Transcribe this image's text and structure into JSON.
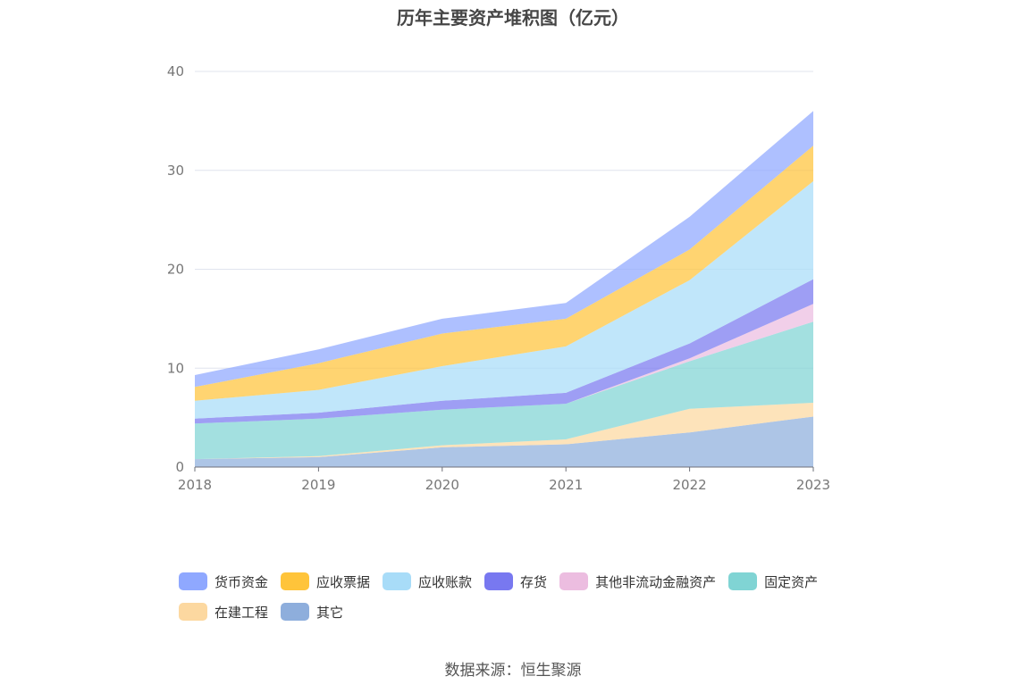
{
  "source": "数据来源：恒生聚源",
  "colors": {
    "货币资金": "#8fa8ff",
    "应收票据": "#ffc43a",
    "应收账款": "#a8dcf8",
    "存货": "#7878f0",
    "其他非流动金融资产": "#ecbde0",
    "固定资产": "#80d4d4",
    "在建工程": "#fcd8a0",
    "其它": "#8eaedc"
  },
  "chart_data": {
    "type": "area",
    "stacked": true,
    "title": "历年主要资产堆积图（亿元）",
    "xlabel": "",
    "ylabel": "",
    "categories": [
      "2018",
      "2019",
      "2020",
      "2021",
      "2022",
      "2023"
    ],
    "ylim": [
      0,
      40
    ],
    "yticks": [
      "0",
      "10",
      "20",
      "30",
      "40"
    ],
    "grid": true,
    "legend_position": "bottom",
    "series": [
      {
        "name": "其它",
        "values": [
          0.8,
          1.0,
          2.0,
          2.3,
          3.5,
          5.1
        ]
      },
      {
        "name": "在建工程",
        "values": [
          0.0,
          0.1,
          0.2,
          0.5,
          2.4,
          1.4
        ]
      },
      {
        "name": "固定资产",
        "values": [
          3.6,
          3.8,
          3.6,
          3.6,
          4.8,
          8.2
        ]
      },
      {
        "name": "其他非流动金融资产",
        "values": [
          0.0,
          0.0,
          0.0,
          0.0,
          0.3,
          1.8
        ]
      },
      {
        "name": "存货",
        "values": [
          0.5,
          0.6,
          0.9,
          1.1,
          1.5,
          2.5
        ]
      },
      {
        "name": "应收账款",
        "values": [
          1.8,
          2.3,
          3.5,
          4.7,
          6.4,
          9.9
        ]
      },
      {
        "name": "应收票据",
        "values": [
          1.4,
          2.7,
          3.3,
          2.8,
          3.1,
          3.6
        ]
      },
      {
        "name": "货币资金",
        "values": [
          1.2,
          1.4,
          1.5,
          1.6,
          3.3,
          3.5
        ]
      }
    ],
    "legend_order": [
      "货币资金",
      "应收票据",
      "应收账款",
      "存货",
      "其他非流动金融资产",
      "固定资产",
      "在建工程",
      "其它"
    ]
  }
}
